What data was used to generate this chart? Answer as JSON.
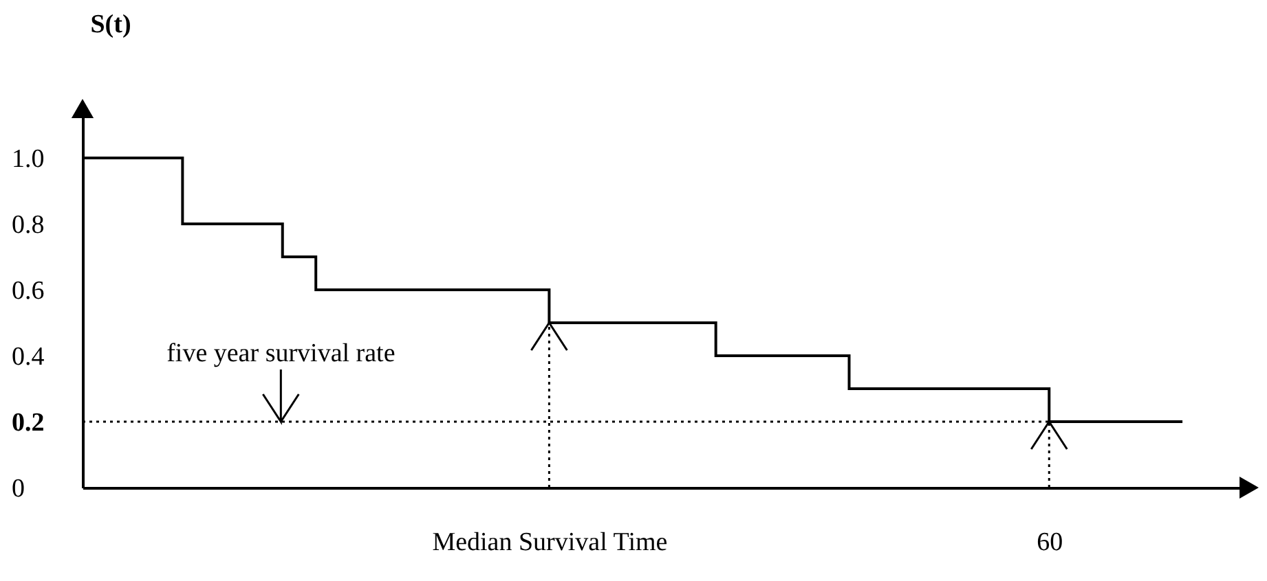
{
  "chart_data": {
    "type": "step",
    "ylabel": "S(t)",
    "categories": [
      null,
      null,
      null,
      null,
      null,
      null,
      null,
      null,
      null,
      null,
      null,
      null,
      null,
      null,
      "Median Survival Time",
      null,
      null,
      null,
      null,
      null,
      null,
      null,
      null,
      null,
      null,
      null,
      null,
      null,
      null,
      "60",
      null,
      null,
      null,
      null,
      null,
      null
    ],
    "series": [
      {
        "color": "#000000",
        "values": [
          1.0,
          1.0,
          1.0,
          0.8,
          0.8,
          0.8,
          0.7,
          0.6,
          0.6,
          0.6,
          0.6,
          0.6,
          0.6,
          0.6,
          0.5,
          0.5,
          0.5,
          0.5,
          0.5,
          0.4,
          0.4,
          0.4,
          0.4,
          0.3,
          0.3,
          0.3,
          0.3,
          0.3,
          0.3,
          0.2,
          0.2,
          0.2,
          0.2,
          0.2,
          null,
          null
        ]
      }
    ],
    "ylim": [
      0,
      1.15
    ],
    "yticks": [
      0,
      0.2,
      0.4,
      0.6,
      0.8,
      {
        "value": 1.0,
        "label": "1.0"
      }
    ],
    "ref_lines": [
      {
        "axis": "y",
        "value": 0.2,
        "line_style": "dotted"
      },
      {
        "axis": "x",
        "value": "Median Survival Time",
        "line_style": "dotted"
      },
      {
        "axis": "x",
        "value": "60",
        "line_style": "dotted"
      }
    ],
    "annotations": [
      {
        "text": "five year survival rate",
        "y": 0.2
      }
    ],
    "grid": false,
    "marker": "none",
    "line_style": "solid"
  }
}
